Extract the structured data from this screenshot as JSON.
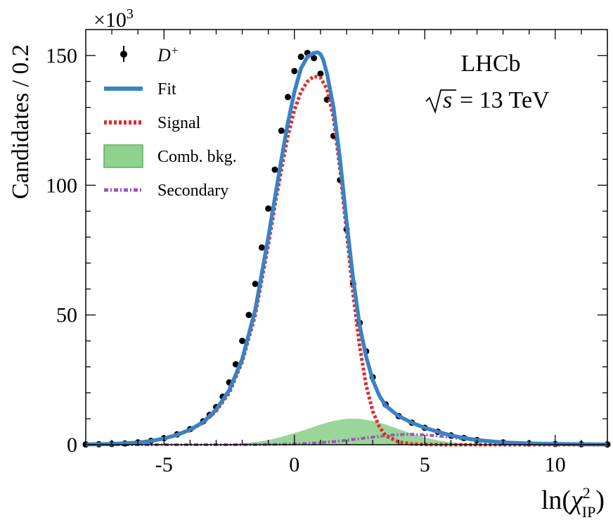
{
  "chart_data": {
    "type": "line",
    "title": "",
    "xlabel_main": "ln(",
    "xlabel_symbol": "χ",
    "xlabel_sup": "2",
    "xlabel_sub": "IP",
    "xlabel_close": ")",
    "ylabel": "Candidates / 0.2",
    "yexponent_prefix": "×10",
    "yexponent_power": "3",
    "xlim": [
      -8,
      12
    ],
    "ylim": [
      0,
      160
    ],
    "xticks": [
      -5,
      0,
      5,
      10
    ],
    "xtick_labels": [
      "-5",
      "0",
      "5",
      "10"
    ],
    "yticks": [
      0,
      50,
      100,
      150
    ],
    "ytick_labels": [
      "0",
      "50",
      "100",
      "150"
    ],
    "grid": false,
    "legend_position": "top-left",
    "annotation": {
      "experiment": "LHCb",
      "energy_sqrt": "s",
      "energy_value": "= 13 TeV"
    },
    "colors": {
      "data": "#000000",
      "fit": "#3a82c4",
      "signal": "#e32b2b",
      "comb": "#8fd18f",
      "comb_edge": "#5db35d",
      "secondary": "#9a55b8"
    },
    "legend": [
      {
        "key": "data",
        "label_main": "D",
        "label_sup": "+"
      },
      {
        "key": "fit",
        "label": "Fit"
      },
      {
        "key": "signal",
        "label": "Signal"
      },
      {
        "key": "comb",
        "label": "Comb. bkg."
      },
      {
        "key": "secondary",
        "label": "Secondary"
      }
    ],
    "series": {
      "data": {
        "x": [
          -8,
          -7.5,
          -7,
          -6.5,
          -6,
          -5.5,
          -5,
          -4.5,
          -4,
          -3.5,
          -3.25,
          -3,
          -2.75,
          -2.5,
          -2.25,
          -2,
          -1.75,
          -1.5,
          -1.25,
          -1,
          -0.75,
          -0.5,
          -0.25,
          0,
          0.25,
          0.5,
          0.75,
          1,
          1.25,
          1.5,
          1.75,
          2,
          2.25,
          2.5,
          2.75,
          3,
          3.5,
          4,
          4.5,
          5,
          5.5,
          6,
          6.5,
          7,
          8,
          9,
          10,
          11,
          12
        ],
        "y": [
          0.1,
          0.2,
          0.3,
          0.5,
          0.9,
          1.5,
          2.5,
          4,
          6,
          9,
          11.5,
          14.5,
          18.5,
          24,
          31,
          40,
          50,
          62,
          76,
          91,
          106,
          121,
          134,
          144,
          149.5,
          151,
          149,
          143,
          133,
          119,
          102,
          83,
          62,
          47,
          36,
          26,
          15.5,
          11,
          8.5,
          6.5,
          5,
          3.6,
          2.6,
          1.8,
          0.9,
          0.5,
          0.3,
          0.2,
          0.1
        ]
      },
      "fit": {
        "x": [
          -8,
          -7,
          -6,
          -5.5,
          -5,
          -4.5,
          -4,
          -3.5,
          -3,
          -2.5,
          -2,
          -1.5,
          -1,
          -0.75,
          -0.5,
          -0.25,
          0,
          0.25,
          0.5,
          0.75,
          0.9,
          1,
          1.1,
          1.25,
          1.5,
          1.75,
          2,
          2.25,
          2.5,
          2.75,
          3,
          3.25,
          3.5,
          4,
          4.5,
          5,
          5.5,
          6,
          6.5,
          7,
          8,
          9,
          10,
          11,
          12
        ],
        "y": [
          0.1,
          0.3,
          0.8,
          1.4,
          2.4,
          3.8,
          5.8,
          8.7,
          13.5,
          21,
          33,
          52,
          80,
          95,
          110,
          124,
          136,
          145,
          149.5,
          151,
          151.2,
          150.5,
          148.5,
          143,
          130,
          110,
          86,
          64,
          46,
          34,
          25,
          19,
          15,
          11,
          8.5,
          6.5,
          5,
          3.6,
          2.6,
          1.8,
          0.9,
          0.5,
          0.3,
          0.2,
          0.1
        ]
      },
      "signal": {
        "x": [
          -8,
          -7,
          -6,
          -5,
          -4,
          -3.5,
          -3,
          -2.5,
          -2,
          -1.5,
          -1,
          -0.75,
          -0.5,
          -0.25,
          0,
          0.25,
          0.5,
          0.75,
          1,
          1.25,
          1.5,
          1.75,
          2,
          2.25,
          2.5,
          2.75,
          3,
          3.25,
          3.5,
          4,
          4.5,
          5,
          6,
          8,
          12
        ],
        "y": [
          0.1,
          0.3,
          0.8,
          2.3,
          5.6,
          8.5,
          13,
          20,
          32,
          50,
          77,
          92,
          106,
          119,
          129,
          136,
          140,
          142,
          141.5,
          137,
          126,
          106,
          82,
          58,
          38,
          23,
          13,
          7,
          3.5,
          1,
          0.3,
          0.1,
          0,
          0,
          0
        ]
      },
      "comb": {
        "x": [
          -8,
          -4,
          -3,
          -2,
          -1.5,
          -1,
          -0.5,
          0,
          0.5,
          1,
          1.5,
          2,
          2.5,
          3,
          3.5,
          4,
          4.5,
          5,
          5.5,
          6,
          6.5,
          7,
          8,
          9,
          12
        ],
        "y": [
          0,
          0,
          0.1,
          0.5,
          1,
          1.8,
          3,
          4.5,
          6,
          7.8,
          9.2,
          10,
          10,
          9.2,
          7.8,
          6,
          4.3,
          2.8,
          1.7,
          0.9,
          0.45,
          0.2,
          0.05,
          0,
          0
        ]
      },
      "secondary": {
        "x": [
          -8,
          -2,
          -1,
          0,
          0.5,
          1,
          1.5,
          2,
          2.5,
          3,
          3.5,
          4,
          4.5,
          5,
          5.5,
          6,
          6.5,
          7,
          7.5,
          8,
          9,
          10,
          11,
          12
        ],
        "y": [
          0,
          0,
          0.1,
          0.3,
          0.5,
          0.8,
          1.2,
          1.7,
          2.3,
          2.9,
          3.5,
          3.9,
          4,
          3.8,
          3.4,
          2.8,
          2.2,
          1.6,
          1.1,
          0.75,
          0.35,
          0.15,
          0.05,
          0
        ]
      }
    }
  }
}
